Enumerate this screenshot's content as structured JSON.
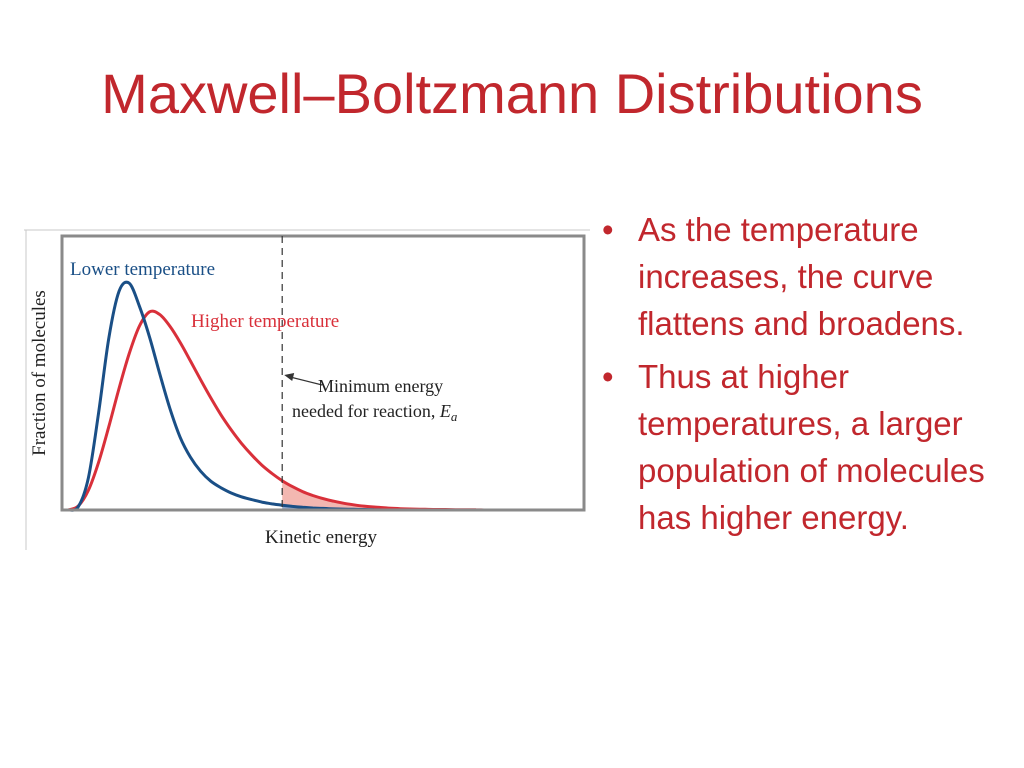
{
  "slide": {
    "title": "Maxwell–Boltzmann Distributions",
    "bullets": [
      "As the temperature increases, the curve flattens and broadens.",
      "Thus at higher temperatures, a larger population of molecules has higher energy."
    ]
  },
  "colors": {
    "title": "#c1272d",
    "lower_curve": "#1a4f86",
    "higher_curve": "#d9303a",
    "shade_higher": "#f3b7b1",
    "shade_lower": "#90a6cc",
    "frame": "#8a8a8a"
  },
  "chart_data": {
    "type": "line",
    "xlabel": "Kinetic energy",
    "ylabel": "Fraction of molecules",
    "grid": false,
    "threshold": {
      "x": 0.42,
      "label_line1": "Minimum energy",
      "label_line2": "needed for reaction, ",
      "label_symbol": "E",
      "label_subscript": "a"
    },
    "series": [
      {
        "name": "Lower temperature",
        "x": [
          0,
          0.02,
          0.04,
          0.06,
          0.08,
          0.1,
          0.12,
          0.14,
          0.16,
          0.18,
          0.2,
          0.22,
          0.24,
          0.26,
          0.28,
          0.3,
          0.32,
          0.34,
          0.36,
          0.38,
          0.4,
          0.42,
          0.44,
          0.46,
          0.48,
          0.5,
          0.52,
          0.54,
          0.56,
          0.58,
          0.6,
          0.62,
          0.64,
          0.66,
          0.68,
          0.7,
          0.72,
          0.74,
          0.76,
          0.78,
          0.8,
          0.82,
          0.84,
          0.86,
          0.88,
          0.9,
          0.92,
          0.94,
          0.96,
          0.98,
          1.0
        ],
        "y": [
          0,
          0.014,
          0.142,
          0.428,
          0.757,
          0.963,
          0.999,
          0.898,
          0.761,
          0.599,
          0.446,
          0.32,
          0.233,
          0.171,
          0.127,
          0.098,
          0.075,
          0.058,
          0.046,
          0.035,
          0.027,
          0.021,
          0.016,
          0.012,
          0.009,
          0.007,
          0.005,
          0.004,
          0.003,
          0.002,
          0.001,
          0,
          0,
          0,
          0,
          0,
          0,
          0,
          0,
          0,
          0,
          0,
          0,
          0,
          0,
          0,
          0,
          0,
          0,
          0,
          0
        ]
      },
      {
        "name": "Higher temperature",
        "x": [
          0,
          0.02,
          0.04,
          0.06,
          0.08,
          0.1,
          0.12,
          0.14,
          0.16,
          0.18,
          0.2,
          0.22,
          0.24,
          0.26,
          0.28,
          0.3,
          0.32,
          0.34,
          0.36,
          0.38,
          0.4,
          0.42,
          0.44,
          0.46,
          0.48,
          0.5,
          0.52,
          0.54,
          0.56,
          0.58,
          0.6,
          0.62,
          0.64,
          0.66,
          0.68,
          0.7,
          0.72,
          0.74,
          0.76,
          0.78,
          0.8,
          0.82,
          0.84,
          0.86,
          0.88,
          0.9,
          0.92,
          0.94,
          0.96,
          0.98,
          1.0
        ],
        "y": [
          0,
          0.017,
          0.087,
          0.21,
          0.367,
          0.535,
          0.689,
          0.81,
          0.873,
          0.861,
          0.809,
          0.738,
          0.657,
          0.574,
          0.494,
          0.419,
          0.353,
          0.294,
          0.243,
          0.198,
          0.161,
          0.129,
          0.103,
          0.081,
          0.064,
          0.05,
          0.039,
          0.03,
          0.023,
          0.017,
          0.013,
          0.01,
          0.007,
          0.005,
          0.004,
          0.003,
          0.002,
          0.002,
          0.001,
          0.001,
          0.001,
          0,
          0,
          0,
          0,
          0,
          0,
          0,
          0,
          0,
          0
        ]
      }
    ]
  }
}
